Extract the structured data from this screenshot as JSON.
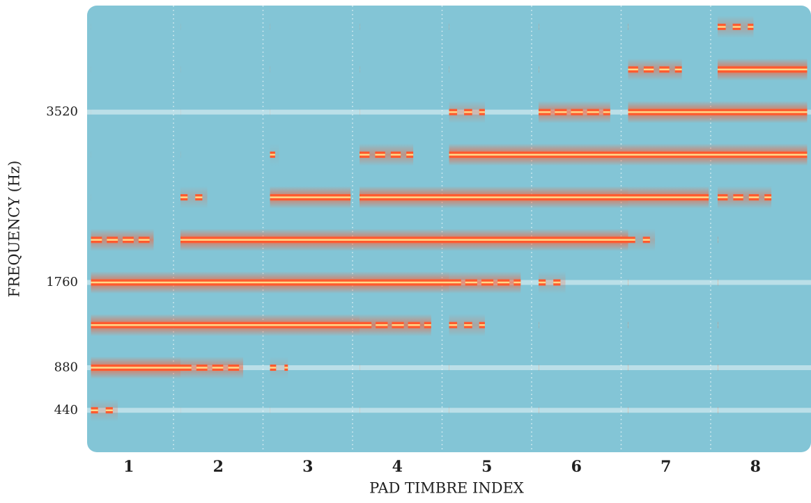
{
  "chart_data": {
    "type": "spectrogram",
    "y_label": "FREQUENCY (Hz)",
    "x_label": "PAD TIMBRE INDEX",
    "categories": [
      "1",
      "2",
      "3",
      "4",
      "5",
      "6",
      "7",
      "8"
    ],
    "frequencies": [
      440,
      880,
      1320,
      1760,
      2200,
      2640,
      3080,
      3520,
      3960,
      4400
    ],
    "values": [
      [
        0.3,
        0,
        0,
        0,
        0,
        0,
        0,
        0
      ],
      [
        1,
        0.7,
        0.2,
        0,
        0,
        0,
        0,
        0
      ],
      [
        1,
        1,
        1,
        0.8,
        0.4,
        0,
        0,
        0
      ],
      [
        1,
        1,
        1,
        1,
        0.8,
        0.3,
        0,
        0
      ],
      [
        0.7,
        1,
        1,
        1,
        1,
        1,
        0.3,
        0
      ],
      [
        0,
        0.3,
        0.9,
        1,
        1,
        1,
        0.9,
        0.6
      ],
      [
        0,
        0,
        0.1,
        0.6,
        1,
        1,
        1,
        1
      ],
      [
        0,
        0,
        0,
        0,
        0.4,
        0.8,
        1,
        1
      ],
      [
        0,
        0,
        0,
        0,
        0,
        0,
        0.6,
        1
      ],
      [
        0,
        0,
        0,
        0,
        0,
        0,
        0,
        0.4
      ]
    ],
    "color": "#ff5a2e",
    "core_color": "#ffd98a",
    "background": "#83c5d6",
    "ylim": [
      0,
      4620
    ],
    "yticks": [
      440,
      880,
      1760,
      3520
    ],
    "grid": true
  }
}
